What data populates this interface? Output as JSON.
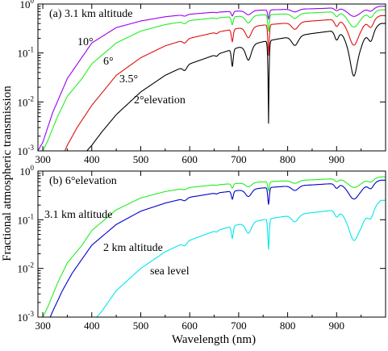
{
  "figure": {
    "ylabel": "Fractional atmospheric transmission",
    "xlabel": "Wavelength (nm)"
  },
  "chart_data": [
    {
      "type": "line",
      "panel_label": "(a) 3.1 km altitude",
      "xlim": [
        290,
        1000
      ],
      "ylim": [
        0.001,
        1
      ],
      "yscale": "log",
      "x_ticks": [
        "300",
        "400",
        "500",
        "600",
        "700",
        "800",
        "900"
      ],
      "x_tick_values": [
        300,
        400,
        500,
        600,
        700,
        800,
        900
      ],
      "y_ticks": [
        "10-3",
        "10-2",
        "10-1",
        "100"
      ],
      "y_tick_values": [
        0.001,
        0.01,
        0.1,
        1
      ],
      "annotations": [
        "10°",
        "6°",
        "3.5°",
        "2°elevation"
      ],
      "series": [
        {
          "color": "#9900ee",
          "x": [
            290,
            300,
            320,
            350,
            400,
            450,
            500,
            550,
            600,
            650,
            680,
            700,
            750,
            800,
            850,
            880,
            900,
            950,
            990
          ],
          "y": [
            0.001,
            0.0015,
            0.006,
            0.03,
            0.16,
            0.33,
            0.45,
            0.55,
            0.62,
            0.68,
            0.7,
            0.72,
            0.75,
            0.78,
            0.8,
            0.82,
            0.84,
            0.78,
            0.9
          ]
        },
        {
          "color": "#22ee22",
          "x": [
            300,
            310,
            330,
            350,
            380,
            400,
            450,
            500,
            550,
            600,
            650,
            700,
            750,
            800,
            850,
            900,
            950,
            990
          ],
          "y": [
            0.001,
            0.0016,
            0.005,
            0.013,
            0.03,
            0.06,
            0.16,
            0.28,
            0.38,
            0.46,
            0.52,
            0.56,
            0.6,
            0.63,
            0.66,
            0.7,
            0.64,
            0.76
          ]
        },
        {
          "color": "#dd1111",
          "x": [
            345,
            350,
            370,
            400,
            450,
            500,
            550,
            600,
            650,
            700,
            750,
            800,
            850,
            900,
            950,
            990
          ],
          "y": [
            0.001,
            0.0013,
            0.003,
            0.0085,
            0.035,
            0.08,
            0.14,
            0.2,
            0.26,
            0.32,
            0.37,
            0.41,
            0.45,
            0.49,
            0.42,
            0.58
          ]
        },
        {
          "color": "#000000",
          "x": [
            390,
            400,
            420,
            450,
            500,
            550,
            600,
            650,
            700,
            750,
            800,
            850,
            900,
            950,
            990
          ],
          "y": [
            0.001,
            0.0013,
            0.0024,
            0.0055,
            0.016,
            0.035,
            0.06,
            0.09,
            0.13,
            0.17,
            0.21,
            0.25,
            0.29,
            0.22,
            0.4
          ]
        }
      ]
    },
    {
      "type": "line",
      "panel_label": "(b) 6°elevation",
      "xlim": [
        290,
        1000
      ],
      "ylim": [
        0.001,
        1
      ],
      "yscale": "log",
      "x_ticks": [
        "300",
        "400",
        "500",
        "600",
        "700",
        "800",
        "900"
      ],
      "x_tick_values": [
        300,
        400,
        500,
        600,
        700,
        800,
        900
      ],
      "y_ticks": [
        "10-3",
        "10-2",
        "10-1",
        "100"
      ],
      "y_tick_values": [
        0.001,
        0.01,
        0.1,
        1
      ],
      "annotations": [
        "3.1 km altitude",
        "2 km altitude",
        "sea level"
      ],
      "series": [
        {
          "color": "#22ee22",
          "x": [
            300,
            310,
            330,
            350,
            380,
            400,
            450,
            500,
            550,
            600,
            650,
            700,
            750,
            800,
            850,
            900,
            950,
            990
          ],
          "y": [
            0.001,
            0.0016,
            0.005,
            0.013,
            0.03,
            0.06,
            0.16,
            0.28,
            0.38,
            0.46,
            0.52,
            0.56,
            0.6,
            0.63,
            0.66,
            0.7,
            0.64,
            0.76
          ]
        },
        {
          "color": "#0000cc",
          "x": [
            315,
            320,
            340,
            360,
            400,
            450,
            500,
            550,
            600,
            650,
            700,
            750,
            800,
            850,
            900,
            950,
            990
          ],
          "y": [
            0.001,
            0.0013,
            0.0035,
            0.008,
            0.03,
            0.08,
            0.15,
            0.22,
            0.29,
            0.35,
            0.4,
            0.45,
            0.49,
            0.52,
            0.56,
            0.5,
            0.65
          ]
        },
        {
          "color": "#00e6ee",
          "x": [
            410,
            420,
            450,
            500,
            550,
            600,
            650,
            700,
            750,
            800,
            850,
            900,
            950,
            990
          ],
          "y": [
            0.001,
            0.0013,
            0.0035,
            0.01,
            0.022,
            0.038,
            0.058,
            0.08,
            0.1,
            0.12,
            0.14,
            0.16,
            0.1,
            0.25
          ]
        }
      ]
    }
  ]
}
